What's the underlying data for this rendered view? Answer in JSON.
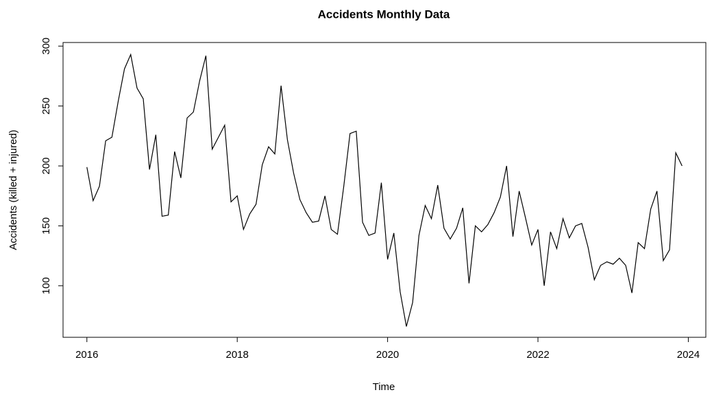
{
  "chart_data": {
    "type": "line",
    "title": "Accidents Monthly Data",
    "xlabel": "Time",
    "ylabel": "Accidents (killed + injured)",
    "x": [
      2016,
      2016.083,
      2016.167,
      2016.25,
      2016.333,
      2016.417,
      2016.5,
      2016.583,
      2016.667,
      2016.75,
      2016.833,
      2016.917,
      2017,
      2017.083,
      2017.167,
      2017.25,
      2017.333,
      2017.417,
      2017.5,
      2017.583,
      2017.667,
      2017.75,
      2017.833,
      2017.917,
      2018,
      2018.083,
      2018.167,
      2018.25,
      2018.333,
      2018.417,
      2018.5,
      2018.583,
      2018.667,
      2018.75,
      2018.833,
      2018.917,
      2019,
      2019.083,
      2019.167,
      2019.25,
      2019.333,
      2019.417,
      2019.5,
      2019.583,
      2019.667,
      2019.75,
      2019.833,
      2019.917,
      2020,
      2020.083,
      2020.167,
      2020.25,
      2020.333,
      2020.417,
      2020.5,
      2020.583,
      2020.667,
      2020.75,
      2020.833,
      2020.917,
      2021,
      2021.083,
      2021.167,
      2021.25,
      2021.333,
      2021.417,
      2021.5,
      2021.583,
      2021.667,
      2021.75,
      2021.833,
      2021.917,
      2022,
      2022.083,
      2022.167,
      2022.25,
      2022.333,
      2022.417,
      2022.5,
      2022.583,
      2022.667,
      2022.75,
      2022.833,
      2022.917,
      2023,
      2023.083,
      2023.167,
      2023.25,
      2023.333,
      2023.417,
      2023.5,
      2023.583,
      2023.667,
      2023.75,
      2023.833,
      2023.917
    ],
    "values": [
      199,
      171,
      183,
      221,
      224,
      254,
      281,
      293,
      265,
      256,
      197,
      226,
      158,
      159,
      212,
      190,
      240,
      245,
      271,
      292,
      214,
      224,
      234,
      170,
      175,
      147,
      160,
      168,
      201,
      216,
      210,
      267,
      222,
      194,
      172,
      161,
      153,
      154,
      175,
      147,
      143,
      183,
      227,
      229,
      153,
      142,
      144,
      186,
      122,
      144,
      95,
      66,
      86,
      142,
      167,
      156,
      184,
      148,
      139,
      148,
      165,
      102,
      150,
      145,
      151,
      161,
      174,
      200,
      141,
      179,
      157,
      134,
      147,
      100,
      145,
      131,
      156,
      140,
      150,
      152,
      132,
      105,
      117,
      120,
      118,
      123,
      117,
      94,
      136,
      131,
      164,
      179,
      121,
      130,
      211,
      200
    ],
    "color": "#000000",
    "xlim": [
      2015.683,
      2024.233
    ],
    "xticks": [
      2016,
      2018,
      2020,
      2022,
      2024
    ],
    "ylim": [
      57,
      303
    ],
    "yticks": [
      100,
      150,
      200,
      250,
      300
    ]
  }
}
